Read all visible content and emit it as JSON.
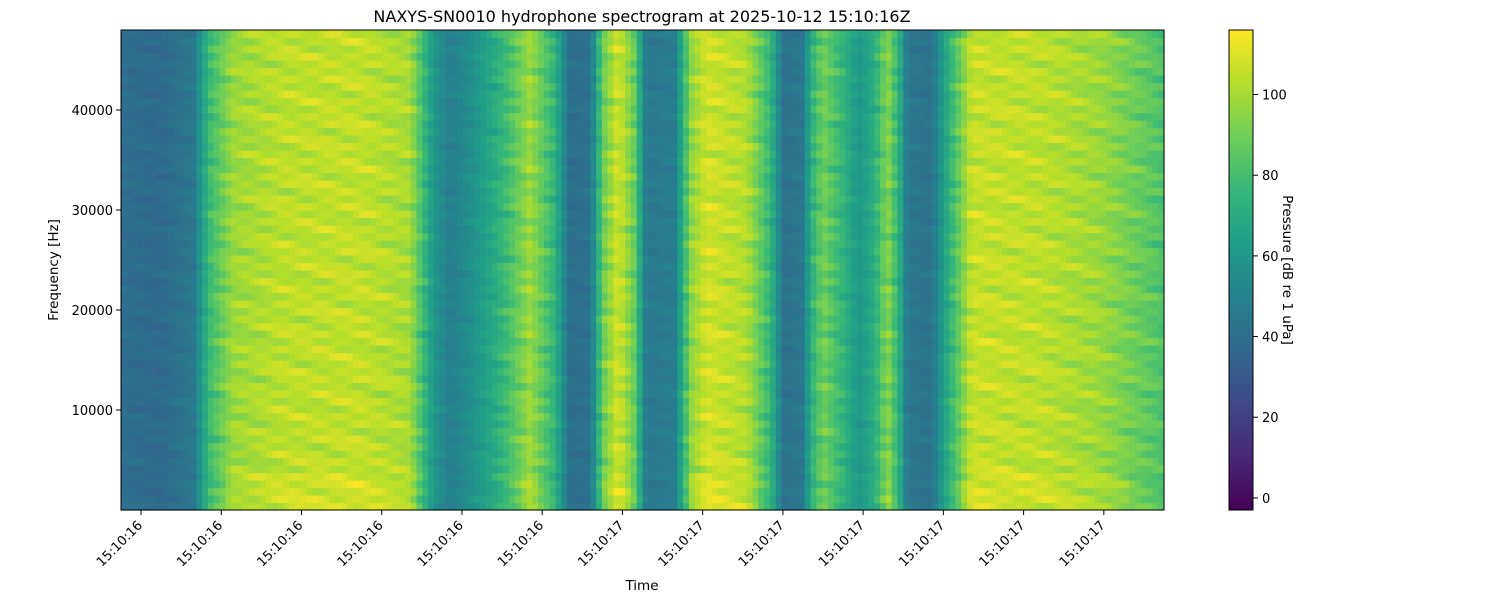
{
  "chart_data": {
    "type": "heatmap",
    "title": "NAXYS-SN0010 hydrophone spectrogram at 2025-10-12 15:10:16Z",
    "xlabel": "Time",
    "ylabel": "Frequency [Hz]",
    "colorbar_label": "Pressure [dB re 1 uPa]",
    "colormap": "viridis",
    "x_tick_labels": [
      "15:10:16",
      "15:10:16",
      "15:10:16",
      "15:10:16",
      "15:10:16",
      "15:10:16",
      "15:10:17",
      "15:10:17",
      "15:10:17",
      "15:10:17",
      "15:10:17",
      "15:10:17",
      "15:10:17"
    ],
    "x_ticks": [
      0.25,
      1.25,
      2.25,
      3.25,
      4.25,
      5.25,
      6.25,
      7.25,
      8.25,
      9.25,
      10.25,
      11.25,
      12.25
    ],
    "xlim": [
      0,
      13
    ],
    "y_ticks": [
      10000,
      20000,
      30000,
      40000
    ],
    "y_tick_labels": [
      "10000",
      "20000",
      "30000",
      "40000"
    ],
    "ylim": [
      0,
      48000
    ],
    "colorbar_ticks": [
      0,
      20,
      40,
      60,
      80,
      100
    ],
    "colorbar_tick_labels": [
      "0",
      "20",
      "40",
      "60",
      "80",
      "100"
    ],
    "colorbar_range": [
      -3,
      116
    ],
    "time_bins": 13,
    "time_profile_dB": [
      {
        "t": 0.0,
        "v": 40
      },
      {
        "t": 0.5,
        "v": 38
      },
      {
        "t": 0.9,
        "v": 45
      },
      {
        "t": 1.1,
        "v": 78
      },
      {
        "t": 1.4,
        "v": 98
      },
      {
        "t": 2.0,
        "v": 104
      },
      {
        "t": 3.0,
        "v": 105
      },
      {
        "t": 3.6,
        "v": 100
      },
      {
        "t": 3.9,
        "v": 60
      },
      {
        "t": 4.1,
        "v": 48
      },
      {
        "t": 4.4,
        "v": 58
      },
      {
        "t": 4.7,
        "v": 72
      },
      {
        "t": 5.1,
        "v": 98
      },
      {
        "t": 5.4,
        "v": 75
      },
      {
        "t": 5.6,
        "v": 40
      },
      {
        "t": 5.85,
        "v": 42
      },
      {
        "t": 6.0,
        "v": 88
      },
      {
        "t": 6.2,
        "v": 108
      },
      {
        "t": 6.4,
        "v": 88
      },
      {
        "t": 6.55,
        "v": 45
      },
      {
        "t": 6.9,
        "v": 48
      },
      {
        "t": 7.1,
        "v": 95
      },
      {
        "t": 7.3,
        "v": 108
      },
      {
        "t": 7.8,
        "v": 102
      },
      {
        "t": 8.1,
        "v": 75
      },
      {
        "t": 8.25,
        "v": 42
      },
      {
        "t": 8.5,
        "v": 45
      },
      {
        "t": 8.6,
        "v": 72
      },
      {
        "t": 8.75,
        "v": 90
      },
      {
        "t": 8.95,
        "v": 78
      },
      {
        "t": 9.2,
        "v": 60
      },
      {
        "t": 9.4,
        "v": 72
      },
      {
        "t": 9.55,
        "v": 95
      },
      {
        "t": 9.7,
        "v": 72
      },
      {
        "t": 9.8,
        "v": 45
      },
      {
        "t": 10.1,
        "v": 42
      },
      {
        "t": 10.3,
        "v": 70
      },
      {
        "t": 10.6,
        "v": 106
      },
      {
        "t": 11.5,
        "v": 104
      },
      {
        "t": 12.2,
        "v": 98
      },
      {
        "t": 12.5,
        "v": 92
      },
      {
        "t": 13.0,
        "v": 82
      }
    ]
  }
}
